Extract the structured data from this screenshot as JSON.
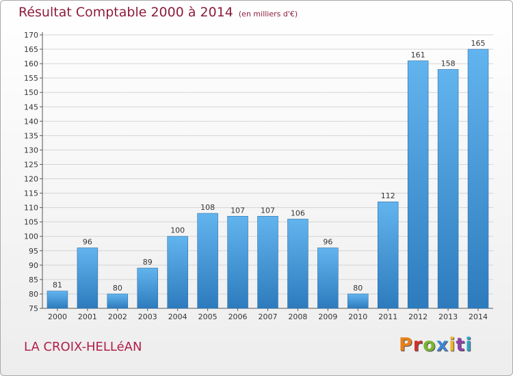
{
  "chart_data": {
    "type": "bar",
    "title": "Résultat Comptable 2000 à 2014",
    "subtitle": "(en milliers d'€)",
    "categories": [
      "2000",
      "2001",
      "2002",
      "2003",
      "2004",
      "2005",
      "2006",
      "2007",
      "2008",
      "2009",
      "2010",
      "2011",
      "2012",
      "2013",
      "2014"
    ],
    "values": [
      81,
      96,
      80,
      89,
      100,
      108,
      107,
      107,
      106,
      96,
      80,
      112,
      161,
      158,
      165
    ],
    "ylim": [
      75,
      170
    ],
    "ytick_step": 5,
    "xlabel": "",
    "ylabel": "",
    "grid": true
  },
  "footer": {
    "commune": "LA CROIX-HELLéAN",
    "brand": "Proxiti"
  },
  "colors": {
    "bar_top": "#62b4ee",
    "bar_bottom": "#2d7bbd",
    "title": "#8c1c3c",
    "brand": [
      "#e8811a",
      "#d1302c",
      "#79b52e",
      "#3f86d0",
      "#e8b62a",
      "#8d3fa6",
      "#2fa3c6"
    ]
  }
}
